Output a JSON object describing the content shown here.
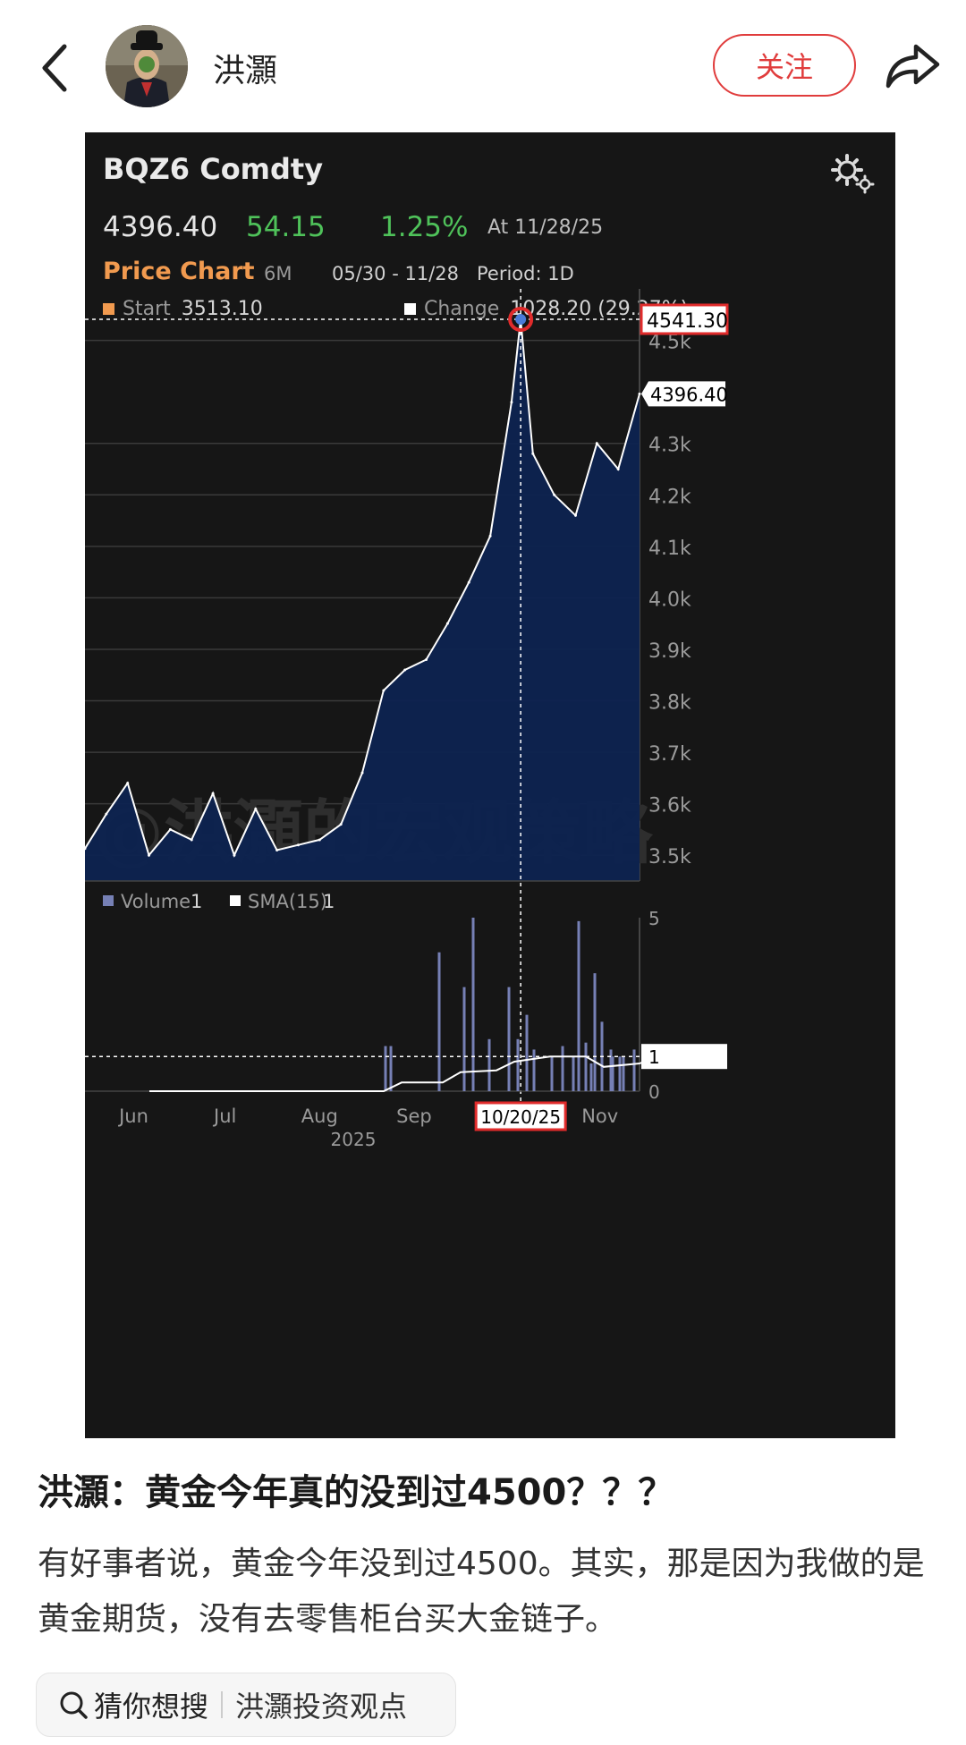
{
  "header": {
    "username": "洪灝",
    "follow_label": "关注",
    "icons": [
      "back-chevron-icon",
      "avatar",
      "share-arrow-icon"
    ]
  },
  "chart_card": {
    "security": "BQZ6 Comdty",
    "last_price": "4396.40",
    "net_change": "54.15",
    "pct_change": "1.25%",
    "as_of": "At 11/28/25",
    "chart_label": "Price Chart",
    "range": "6M",
    "date_range": "05/30 - 11/28",
    "period": "Period: 1D",
    "start_label": "Start",
    "start_value": "3513.10",
    "change_label": "Change",
    "change_value": "1028.20 (29.27%)",
    "volume_legend": "Volume",
    "volume_legend_value": "1",
    "sma_legend": "SMA(15)",
    "sma_legend_value": "1",
    "watermark": "@洪灝的宏观策略",
    "high_label": "4541.30",
    "last_label": "4396.40",
    "volume_cursor_label": "1",
    "cursor_date": "10/20/25",
    "year_label": "2025",
    "colors": {
      "background": "#161616",
      "area": "#0d2350",
      "line": "#ffffff",
      "up": "#4fc25a",
      "accent": "#f19a4f",
      "highlight": "#e02b2b"
    }
  },
  "chart_data": [
    {
      "type": "area",
      "title": "BQZ6 Comdty",
      "xlabel": "",
      "ylabel": "",
      "x_ticks": [
        "Jun",
        "Jul",
        "Aug",
        "Sep",
        "Oct",
        "Nov"
      ],
      "y_ticks": [
        "3.5k",
        "3.6k",
        "3.7k",
        "3.8k",
        "3.9k",
        "4.0k",
        "4.1k",
        "4.2k",
        "4.3k",
        "4.5k"
      ],
      "ylim": [
        3450,
        4600
      ],
      "x": [
        "2025-05-30",
        "2025-06-06",
        "2025-06-13",
        "2025-06-20",
        "2025-06-27",
        "2025-07-04",
        "2025-07-11",
        "2025-07-18",
        "2025-07-25",
        "2025-08-01",
        "2025-08-08",
        "2025-08-15",
        "2025-08-22",
        "2025-08-29",
        "2025-09-05",
        "2025-09-12",
        "2025-09-19",
        "2025-09-26",
        "2025-10-03",
        "2025-10-10",
        "2025-10-17",
        "2025-10-20",
        "2025-10-24",
        "2025-10-31",
        "2025-11-07",
        "2025-11-14",
        "2025-11-21",
        "2025-11-28"
      ],
      "values": [
        3513,
        3580,
        3640,
        3500,
        3550,
        3530,
        3620,
        3500,
        3590,
        3510,
        3520,
        3530,
        3560,
        3660,
        3820,
        3860,
        3880,
        3950,
        4030,
        4120,
        4380,
        4541,
        4280,
        4200,
        4160,
        4300,
        4250,
        4396
      ],
      "annotations": [
        "4541.30",
        "4396.40"
      ],
      "grid": true,
      "legend": "top-left"
    },
    {
      "type": "bar",
      "title": "",
      "series": [
        {
          "name": "Volume"
        },
        {
          "name": "SMA(15)"
        }
      ],
      "y_ticks": [
        "0",
        "1",
        "5"
      ],
      "ylim": [
        0,
        5
      ],
      "grid": false,
      "legend": "top-left"
    }
  ],
  "post": {
    "title": "洪灝：黄金今年真的没到过4500？？？",
    "body": "有好事者说，黄金今年没到过4500。其实，那是因为我做的是黄金期货，没有去零售柜台买大金链子。",
    "search_hint": "猜你想搜",
    "search_topic": "洪灝投资观点"
  }
}
